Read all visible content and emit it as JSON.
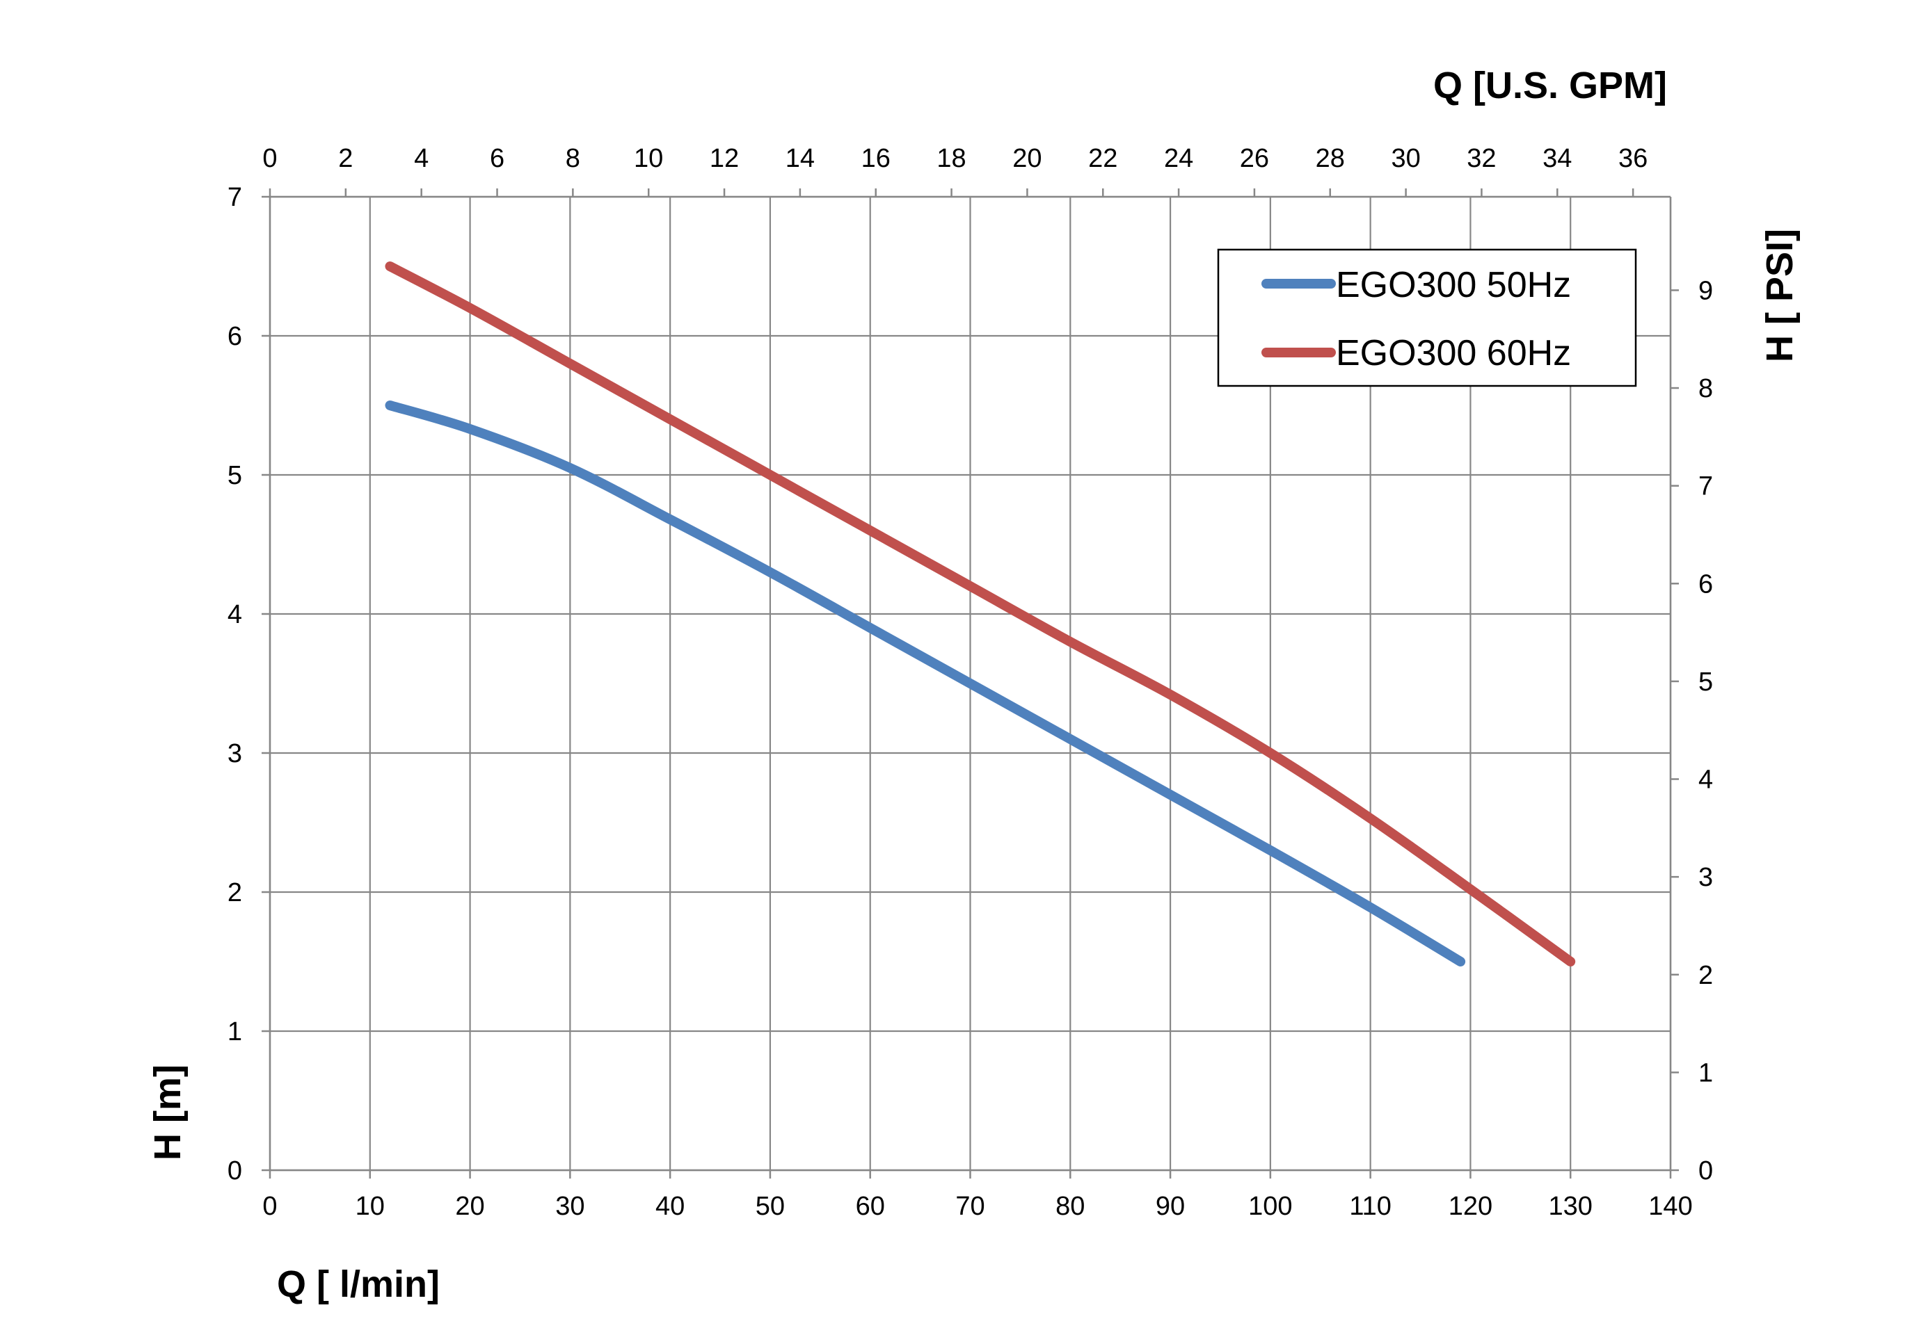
{
  "chart_data": {
    "type": "line",
    "x_bottom": {
      "label": "Q [ l/min]",
      "range": [
        0,
        140
      ],
      "ticks": [
        0,
        10,
        20,
        30,
        40,
        50,
        60,
        70,
        80,
        90,
        100,
        110,
        120,
        130,
        140
      ]
    },
    "x_top": {
      "label": "Q  [U.S. GPM]",
      "range": [
        0,
        36.99
      ],
      "ticks": [
        0,
        2,
        4,
        6,
        8,
        10,
        12,
        14,
        16,
        18,
        20,
        22,
        24,
        26,
        28,
        30,
        32,
        34,
        36
      ]
    },
    "y_left": {
      "label": "H [m]",
      "range": [
        0,
        7
      ],
      "ticks": [
        0,
        1,
        2,
        3,
        4,
        5,
        6,
        7
      ]
    },
    "y_right": {
      "label": "H [ PSI]",
      "range": [
        0,
        9.956
      ],
      "ticks": [
        0,
        1,
        2,
        3,
        4,
        5,
        6,
        7,
        8,
        9
      ]
    },
    "grid": true,
    "legend_position": "top-right",
    "series": [
      {
        "name": "EGO300 50Hz",
        "color": "#4F81BD",
        "x": [
          12,
          20,
          30,
          40,
          50,
          60,
          70,
          80,
          90,
          100,
          110,
          119
        ],
        "y": [
          5.5,
          5.33,
          5.05,
          4.68,
          4.3,
          3.9,
          3.5,
          3.1,
          2.7,
          2.3,
          1.89,
          1.5
        ]
      },
      {
        "name": "EGO300 60Hz",
        "color": "#C0504D",
        "x": [
          12,
          20,
          30,
          40,
          50,
          60,
          70,
          80,
          90,
          100,
          110,
          120,
          130
        ],
        "y": [
          6.5,
          6.2,
          5.8,
          5.4,
          5.0,
          4.6,
          4.2,
          3.8,
          3.42,
          3.0,
          2.53,
          2.02,
          1.5
        ]
      }
    ]
  }
}
